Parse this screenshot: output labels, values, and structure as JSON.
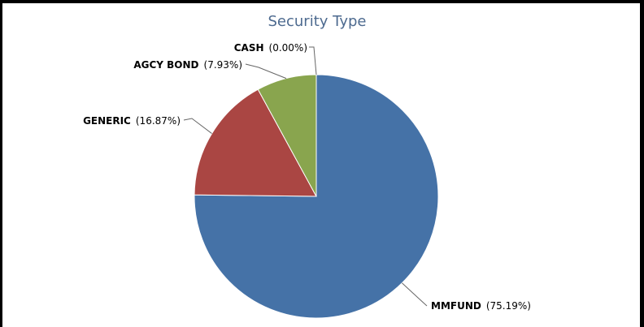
{
  "chart_data": {
    "type": "pie",
    "title": "Security Type",
    "slices": [
      {
        "label": "MMFUND",
        "value": 75.19,
        "display": "(75.19%)",
        "color": "#4572a7"
      },
      {
        "label": "GENERIC",
        "value": 16.87,
        "display": "(16.87%)",
        "color": "#aa4643"
      },
      {
        "label": "AGCY BOND",
        "value": 7.93,
        "display": "(7.93%)",
        "color": "#89a54e"
      },
      {
        "label": "CASH",
        "value": 0.0,
        "display": "(0.00%)",
        "color": "#80699b"
      }
    ],
    "legend": "none",
    "start_angle": "12 o'clock, clockwise"
  }
}
